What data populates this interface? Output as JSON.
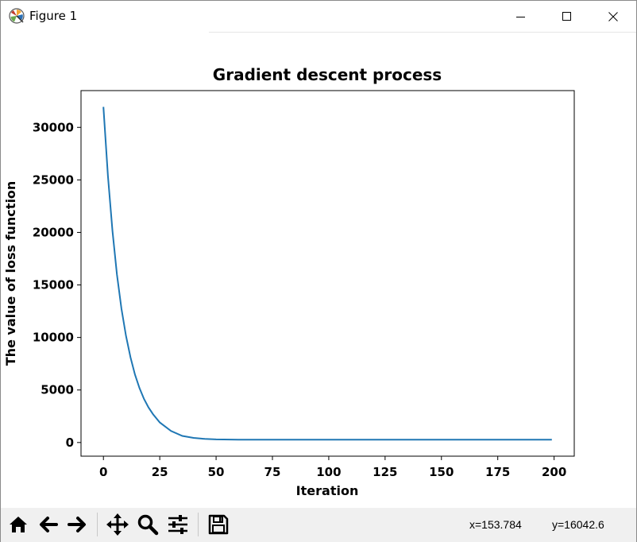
{
  "window": {
    "title": "Figure 1",
    "controls": [
      "minimize",
      "maximize",
      "close"
    ]
  },
  "toolbar": {
    "buttons": [
      {
        "name": "home",
        "icon": "home-icon"
      },
      {
        "name": "back",
        "icon": "arrow-left-icon"
      },
      {
        "name": "forward",
        "icon": "arrow-right-icon"
      },
      {
        "name": "pan",
        "icon": "move-icon"
      },
      {
        "name": "zoom",
        "icon": "magnifier-icon"
      },
      {
        "name": "configure-subplots",
        "icon": "sliders-icon"
      },
      {
        "name": "save",
        "icon": "floppy-disk-icon"
      }
    ],
    "coord_x": "x=153.784",
    "coord_y": "y=16042.6"
  },
  "chart_data": {
    "type": "line",
    "title": "Gradient descent process",
    "xlabel": "Iteration",
    "ylabel": "The value of loss function",
    "xlim": [
      -9.95,
      208.95
    ],
    "ylim": [
      -1300,
      33500
    ],
    "xticks": [
      0,
      25,
      50,
      75,
      100,
      125,
      150,
      175,
      200
    ],
    "yticks": [
      0,
      5000,
      10000,
      15000,
      20000,
      25000,
      30000
    ],
    "xtick_labels": [
      "0",
      "25",
      "50",
      "75",
      "100",
      "125",
      "150",
      "175",
      "200"
    ],
    "ytick_labels": [
      "0",
      "5000",
      "10000",
      "15000",
      "20000",
      "25000",
      "30000"
    ],
    "grid": false,
    "color": "#1f77b4",
    "series": [
      {
        "x": [
          0,
          2,
          4,
          6,
          8,
          10,
          12,
          14,
          16,
          18,
          20,
          22,
          25,
          30,
          35,
          40,
          45,
          50,
          60,
          75,
          100,
          125,
          150,
          175,
          199
        ],
        "y": [
          31950,
          25360,
          20150,
          16020,
          12740,
          10160,
          8110,
          6480,
          5180,
          4150,
          3340,
          2700,
          1910,
          1100,
          630,
          440,
          340,
          300,
          275,
          270,
          270,
          270,
          270,
          270,
          270
        ]
      }
    ]
  }
}
